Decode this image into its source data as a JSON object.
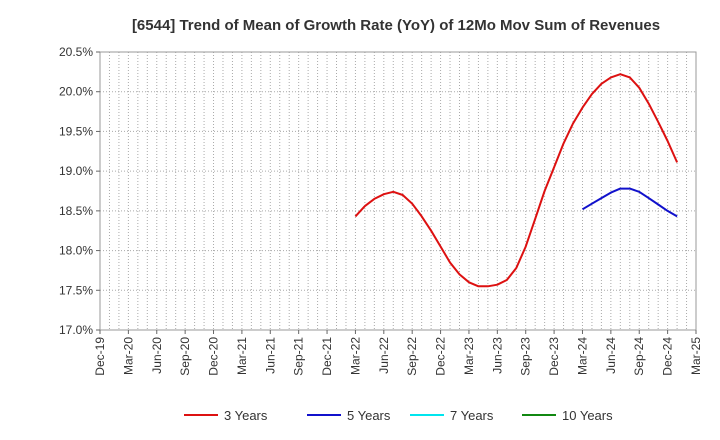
{
  "chart_data": {
    "type": "line",
    "title": "[6544]  Trend of Mean of Growth Rate (YoY) of 12Mo Mov Sum of Revenues",
    "xlabel": "",
    "ylabel": "",
    "ylim": [
      17.0,
      20.5
    ],
    "y_ticks": [
      "17.0%",
      "17.5%",
      "18.0%",
      "18.5%",
      "19.0%",
      "19.5%",
      "20.0%",
      "20.5%"
    ],
    "x_tick_labels": [
      "Dec-19",
      "Mar-20",
      "Jun-20",
      "Sep-20",
      "Dec-20",
      "Mar-21",
      "Jun-21",
      "Sep-21",
      "Dec-21",
      "Mar-22",
      "Jun-22",
      "Sep-22",
      "Dec-22",
      "Mar-23",
      "Jun-23",
      "Sep-23",
      "Dec-23",
      "Mar-24",
      "Jun-24",
      "Sep-24",
      "Dec-24",
      "Mar-25"
    ],
    "x_range_months": [
      0,
      63
    ],
    "grid": true,
    "legend_position": "bottom",
    "series": [
      {
        "name": "3 Years",
        "color": "#dd1111",
        "start_month": 27,
        "values": [
          18.43,
          18.56,
          18.65,
          18.71,
          18.74,
          18.7,
          18.59,
          18.43,
          18.25,
          18.05,
          17.85,
          17.7,
          17.6,
          17.55,
          17.55,
          17.57,
          17.63,
          17.78,
          18.05,
          18.4,
          18.75,
          19.05,
          19.35,
          19.6,
          19.8,
          19.97,
          20.1,
          20.18,
          20.22,
          20.18,
          20.05,
          19.85,
          19.62,
          19.38,
          19.11
        ]
      },
      {
        "name": "5 Years",
        "color": "#1111cc",
        "start_month": 51,
        "values": [
          18.52,
          18.59,
          18.66,
          18.73,
          18.78,
          18.78,
          18.74,
          18.66,
          18.58,
          18.5,
          18.43
        ]
      },
      {
        "name": "7 Years",
        "color": "#00e5ee",
        "start_month": 0,
        "values": []
      },
      {
        "name": "10 Years",
        "color": "#118811",
        "start_month": 0,
        "values": []
      }
    ]
  }
}
